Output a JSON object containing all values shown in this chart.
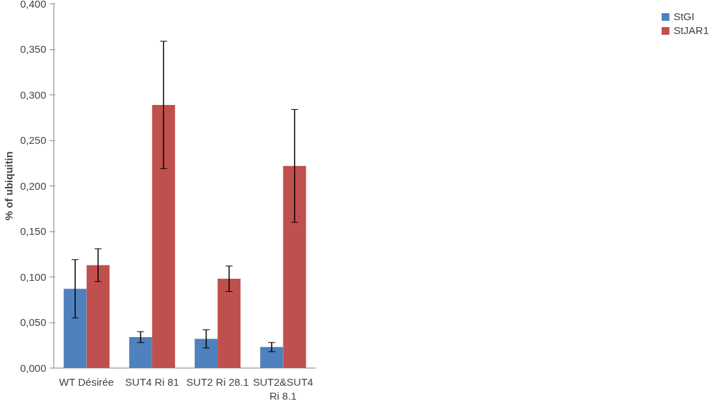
{
  "chart_data": {
    "type": "bar",
    "ylabel": "% of ubiquitin",
    "categories": [
      "WT Désirée",
      "SUT4 Ri 81",
      "SUT2 Ri 28.1",
      "SUT2&SUT4\nRi 8.1"
    ],
    "series": [
      {
        "name": "StGI",
        "color": "#4f81bd",
        "values": [
          0.087,
          0.034,
          0.032,
          0.023
        ],
        "errors": [
          0.032,
          0.006,
          0.01,
          0.005
        ]
      },
      {
        "name": "StJAR1",
        "color": "#c0504d",
        "values": [
          0.113,
          0.289,
          0.098,
          0.222
        ],
        "errors": [
          0.018,
          0.07,
          0.014,
          0.062
        ]
      }
    ],
    "ylim": [
      0,
      0.4
    ],
    "yticks": [
      {
        "value": 0,
        "label": "0,000"
      },
      {
        "value": 0.05,
        "label": "0,050"
      },
      {
        "value": 0.1,
        "label": "0,100"
      },
      {
        "value": 0.15,
        "label": "0,150"
      },
      {
        "value": 0.2,
        "label": "0,200"
      },
      {
        "value": 0.25,
        "label": "0,250"
      },
      {
        "value": 0.3,
        "label": "0,300"
      },
      {
        "value": 0.35,
        "label": "0,350"
      },
      {
        "value": 0.4,
        "label": "0,400"
      }
    ],
    "grid": false,
    "legend": "right"
  }
}
